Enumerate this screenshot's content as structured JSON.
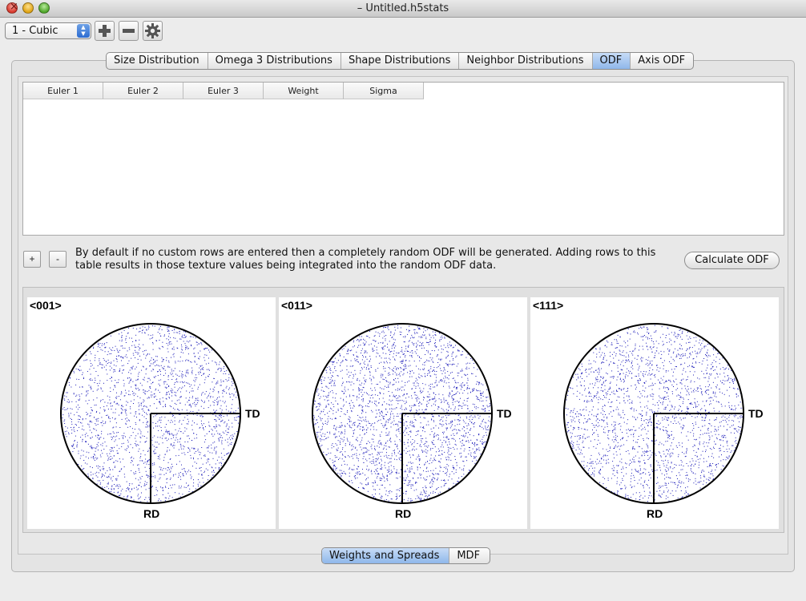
{
  "window": {
    "title": "– Untitled.h5stats"
  },
  "toolbar": {
    "phase_select": "1 - Cubic",
    "add_icon": "plus-icon",
    "remove_icon": "minus-icon",
    "settings_icon": "gear-icon"
  },
  "top_tabs": [
    {
      "label": "Size Distribution",
      "active": false
    },
    {
      "label": "Omega 3 Distributions",
      "active": false
    },
    {
      "label": "Shape Distributions",
      "active": false
    },
    {
      "label": "Neighbor Distributions",
      "active": false
    },
    {
      "label": "ODF",
      "active": true
    },
    {
      "label": "Axis ODF",
      "active": false
    }
  ],
  "table": {
    "columns": [
      "Euler 1",
      "Euler 2",
      "Euler 3",
      "Weight",
      "Sigma"
    ],
    "rows": []
  },
  "row_controls": {
    "add_label": "+",
    "remove_label": "-"
  },
  "info_text": "By default if no custom rows are entered then a completely random ODF will be generated. Adding rows to this table results in those texture values being integrated into the random ODF data.",
  "calculate_button": "Calculate ODF",
  "pole_figures": [
    {
      "title": "<001>",
      "x_label": "TD",
      "y_label": "RD"
    },
    {
      "title": "<011>",
      "x_label": "TD",
      "y_label": "RD"
    },
    {
      "title": "<111>",
      "x_label": "TD",
      "y_label": "RD"
    }
  ],
  "bottom_tabs": [
    {
      "label": "Weights and Spreads",
      "active": true
    },
    {
      "label": "MDF",
      "active": false
    }
  ],
  "colors": {
    "point_color": "#1a1ab8",
    "active_tab": "#9dc0ee"
  }
}
